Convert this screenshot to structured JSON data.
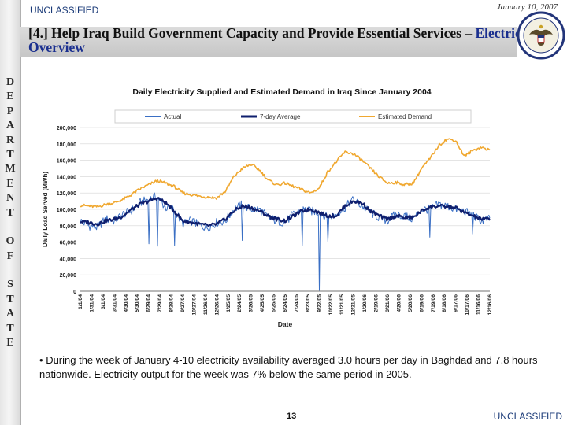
{
  "header": {
    "classification": "UNCLASSIFIED",
    "date": "January 10, 2007",
    "title_prefix": "[4.] Help Iraq Build Government Capacity and Provide Essential Services – ",
    "title_highlight": "Electricity Overview"
  },
  "sidebar": {
    "letters": [
      "D",
      "E",
      "P",
      "A",
      "R",
      "T",
      "M",
      "E",
      "N",
      "T",
      "",
      "O",
      "F",
      "",
      "S",
      "T",
      "A",
      "T",
      "E"
    ]
  },
  "chart_data": {
    "type": "line",
    "title": "Daily Electricity Supplied and Estimated Demand in Iraq Since January 2004",
    "xlabel": "Date",
    "ylabel": "Daily Load Served (MWh)",
    "ylim": [
      0,
      200000
    ],
    "yticks": [
      0,
      20000,
      40000,
      60000,
      80000,
      100000,
      120000,
      140000,
      160000,
      180000,
      200000
    ],
    "ytick_labels": [
      "0",
      "20,000",
      "40,000",
      "60,000",
      "80,000",
      "100,000",
      "120,000",
      "140,000",
      "160,000",
      "180,000",
      "200,000"
    ],
    "xtick_labels": [
      "1/1/04",
      "1/31/04",
      "3/1/04",
      "3/31/04",
      "4/30/04",
      "5/30/04",
      "6/29/04",
      "7/29/04",
      "8/28/04",
      "9/27/04",
      "10/27/04",
      "11/26/04",
      "12/26/04",
      "1/25/05",
      "2/24/05",
      "3/26/05",
      "4/25/05",
      "5/25/05",
      "6/24/05",
      "7/24/05",
      "8/23/05",
      "9/22/05",
      "10/22/05",
      "11/21/05",
      "12/21/05",
      "1/20/06",
      "2/19/06",
      "3/21/06",
      "4/20/06",
      "5/20/06",
      "6/19/06",
      "7/19/06",
      "8/18/06",
      "9/17/06",
      "10/17/06",
      "11/16/06",
      "12/16/06"
    ],
    "legend": [
      "Actual",
      "7-day Average",
      "Estimated Demand"
    ],
    "legend_position": "top",
    "colors": {
      "actual": "#3a6fc4",
      "avg": "#0f1f6e",
      "demand": "#f0a830"
    },
    "series": [
      {
        "name": "Estimated Demand",
        "values": [
          105000,
          104000,
          103000,
          106000,
          108000,
          112000,
          118000,
          125000,
          130000,
          135000,
          132000,
          128000,
          120000,
          118000,
          116000,
          115000,
          114000,
          122000,
          140000,
          150000,
          155000,
          148000,
          136000,
          130000,
          132000,
          128000,
          124000,
          120000,
          126000,
          146000,
          158000,
          170000,
          168000,
          160000,
          150000,
          140000,
          132000,
          133000,
          130000,
          132000,
          150000,
          162000,
          178000,
          186000,
          184000,
          165000,
          172000,
          176000,
          172000
        ]
      },
      {
        "name": "7-day Average",
        "values": [
          85000,
          84000,
          82000,
          86000,
          88000,
          92000,
          100000,
          106000,
          110000,
          114000,
          108000,
          98000,
          86000,
          84000,
          82000,
          80000,
          82000,
          88000,
          98000,
          104000,
          102000,
          98000,
          92000,
          88000,
          86000,
          92000,
          98000,
          100000,
          96000,
          92000,
          92000,
          104000,
          110000,
          108000,
          98000,
          92000,
          88000,
          92000,
          90000,
          90000,
          98000,
          103000,
          104000,
          103000,
          102000,
          96000,
          92000,
          88000,
          88000
        ]
      },
      {
        "name": "Actual",
        "values": [
          86000,
          80000,
          78000,
          88000,
          86000,
          94000,
          98000,
          108000,
          112000,
          116000,
          102000,
          100000,
          82000,
          86000,
          80000,
          78000,
          84000,
          86000,
          100000,
          106000,
          100000,
          100000,
          90000,
          86000,
          84000,
          94000,
          100000,
          98000,
          96000,
          90000,
          94000,
          102000,
          112000,
          104000,
          96000,
          90000,
          86000,
          94000,
          92000,
          88000,
          100000,
          100000,
          106000,
          104000,
          100000,
          98000,
          92000,
          86000,
          88000
        ]
      }
    ],
    "dips": [
      {
        "name": "Actual",
        "index": 8,
        "value": 58000
      },
      {
        "name": "Actual",
        "index": 9,
        "value": 55000
      },
      {
        "name": "Actual",
        "index": 11,
        "value": 56000
      },
      {
        "name": "Actual",
        "index": 19,
        "value": 62000
      },
      {
        "name": "Actual",
        "index": 26,
        "value": 56000
      },
      {
        "name": "Actual",
        "index": 28,
        "value": 1000
      },
      {
        "name": "Actual",
        "index": 29,
        "value": 60000
      },
      {
        "name": "Actual",
        "index": 41,
        "value": 66000
      },
      {
        "name": "Actual",
        "index": 46,
        "value": 70000
      }
    ]
  },
  "body": {
    "bullet_symbol": "•",
    "bullet_text": "During the week of January 4-10 electricity availability averaged 3.0 hours per day in Baghdad and 7.8 hours nationwide.  Electricity output for the week was 7% below the same period in 2005."
  },
  "footer": {
    "page_number": "13",
    "classification": "UNCLASSIFIED"
  }
}
